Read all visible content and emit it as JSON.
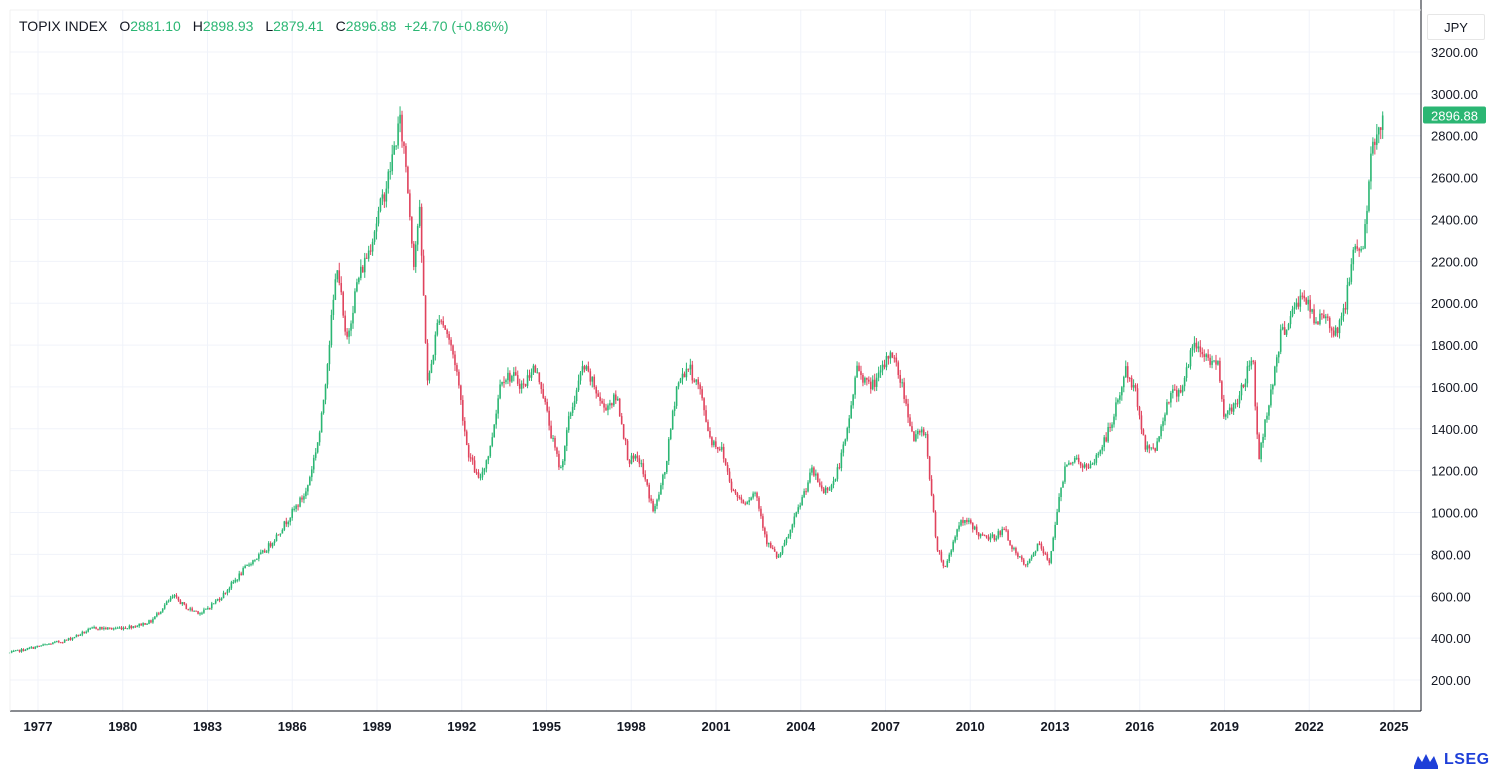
{
  "legend": {
    "symbol": "TOPIX INDEX",
    "o_label": "O",
    "o_value": "2881.10",
    "h_label": "H",
    "h_value": "2898.93",
    "l_label": "L",
    "l_value": "2879.41",
    "c_label": "C",
    "c_value": "2896.88",
    "change": "+24.70 (+0.86%)"
  },
  "currency": "JPY",
  "brand": "LSEG",
  "colors": {
    "up": "#2bb673",
    "down": "#e0435d",
    "accent": "#2bb673",
    "grid": "#f0f3fa",
    "brand": "#1e3fd8"
  },
  "chart_data": {
    "type": "candlestick",
    "symbol": "TOPIX INDEX",
    "currency": "JPY",
    "y_ticks": [
      "200.00",
      "400.00",
      "600.00",
      "800.00",
      "1000.00",
      "1200.00",
      "1400.00",
      "1600.00",
      "1800.00",
      "2000.00",
      "2200.00",
      "2400.00",
      "2600.00",
      "2800.00",
      "3000.00",
      "3200.00"
    ],
    "x_ticks": [
      "1977",
      "1980",
      "1983",
      "1986",
      "1989",
      "1992",
      "1995",
      "1998",
      "2001",
      "2004",
      "2007",
      "2010",
      "2013",
      "2016",
      "2019",
      "2022",
      "2025"
    ],
    "ylim": [
      0,
      3200
    ],
    "xlim": [
      1976.0,
      2025.5
    ],
    "last_value_label": "2896.88",
    "last_value": 2896.88,
    "grid": true,
    "approx_path": [
      [
        1976.0,
        330
      ],
      [
        1976.5,
        345
      ],
      [
        1977.0,
        360
      ],
      [
        1977.5,
        375
      ],
      [
        1978.0,
        390
      ],
      [
        1978.5,
        420
      ],
      [
        1979.0,
        450
      ],
      [
        1979.5,
        445
      ],
      [
        1980.0,
        450
      ],
      [
        1980.5,
        460
      ],
      [
        1981.0,
        480
      ],
      [
        1981.5,
        560
      ],
      [
        1981.8,
        600
      ],
      [
        1982.3,
        540
      ],
      [
        1982.8,
        520
      ],
      [
        1983.5,
        600
      ],
      [
        1984.0,
        680
      ],
      [
        1984.5,
        760
      ],
      [
        1985.0,
        810
      ],
      [
        1985.5,
        900
      ],
      [
        1986.0,
        1000
      ],
      [
        1986.5,
        1100
      ],
      [
        1987.0,
        1400
      ],
      [
        1987.3,
        1800
      ],
      [
        1987.6,
        2200
      ],
      [
        1987.9,
        1800
      ],
      [
        1988.3,
        2100
      ],
      [
        1988.7,
        2250
      ],
      [
        1989.0,
        2400
      ],
      [
        1989.4,
        2600
      ],
      [
        1989.8,
        2870
      ],
      [
        1990.0,
        2700
      ],
      [
        1990.3,
        2200
      ],
      [
        1990.5,
        2450
      ],
      [
        1990.8,
        1600
      ],
      [
        1991.2,
        1950
      ],
      [
        1991.5,
        1850
      ],
      [
        1991.8,
        1700
      ],
      [
        1992.2,
        1300
      ],
      [
        1992.6,
        1150
      ],
      [
        1993.0,
        1300
      ],
      [
        1993.4,
        1650
      ],
      [
        1993.8,
        1650
      ],
      [
        1994.2,
        1600
      ],
      [
        1994.5,
        1700
      ],
      [
        1994.8,
        1620
      ],
      [
        1995.2,
        1350
      ],
      [
        1995.5,
        1200
      ],
      [
        1995.8,
        1450
      ],
      [
        1996.3,
        1700
      ],
      [
        1996.7,
        1600
      ],
      [
        1997.0,
        1500
      ],
      [
        1997.5,
        1550
      ],
      [
        1997.9,
        1250
      ],
      [
        1998.3,
        1250
      ],
      [
        1998.8,
        1000
      ],
      [
        1999.2,
        1200
      ],
      [
        1999.6,
        1600
      ],
      [
        2000.0,
        1700
      ],
      [
        2000.4,
        1600
      ],
      [
        2000.8,
        1350
      ],
      [
        2001.2,
        1300
      ],
      [
        2001.6,
        1100
      ],
      [
        2002.0,
        1050
      ],
      [
        2002.4,
        1100
      ],
      [
        2002.8,
        860
      ],
      [
        2003.2,
        780
      ],
      [
        2003.6,
        900
      ],
      [
        2004.0,
        1050
      ],
      [
        2004.4,
        1200
      ],
      [
        2004.8,
        1100
      ],
      [
        2005.2,
        1150
      ],
      [
        2005.6,
        1350
      ],
      [
        2006.0,
        1700
      ],
      [
        2006.4,
        1600
      ],
      [
        2006.8,
        1650
      ],
      [
        2007.2,
        1780
      ],
      [
        2007.6,
        1600
      ],
      [
        2008.0,
        1350
      ],
      [
        2008.4,
        1400
      ],
      [
        2008.8,
        850
      ],
      [
        2009.1,
        730
      ],
      [
        2009.6,
        950
      ],
      [
        2010.0,
        950
      ],
      [
        2010.4,
        880
      ],
      [
        2010.8,
        880
      ],
      [
        2011.2,
        920
      ],
      [
        2011.6,
        800
      ],
      [
        2012.0,
        740
      ],
      [
        2012.4,
        850
      ],
      [
        2012.8,
        760
      ],
      [
        2013.0,
        950
      ],
      [
        2013.4,
        1250
      ],
      [
        2013.8,
        1250
      ],
      [
        2014.2,
        1200
      ],
      [
        2014.6,
        1300
      ],
      [
        2015.0,
        1420
      ],
      [
        2015.5,
        1680
      ],
      [
        2015.9,
        1550
      ],
      [
        2016.2,
        1300
      ],
      [
        2016.6,
        1320
      ],
      [
        2017.0,
        1550
      ],
      [
        2017.5,
        1600
      ],
      [
        2017.9,
        1800
      ],
      [
        2018.3,
        1750
      ],
      [
        2018.8,
        1700
      ],
      [
        2019.0,
        1450
      ],
      [
        2019.5,
        1550
      ],
      [
        2020.0,
        1750
      ],
      [
        2020.2,
        1250
      ],
      [
        2020.6,
        1550
      ],
      [
        2021.0,
        1850
      ],
      [
        2021.4,
        1950
      ],
      [
        2021.8,
        2050
      ],
      [
        2022.2,
        1900
      ],
      [
        2022.6,
        1950
      ],
      [
        2022.9,
        1850
      ],
      [
        2023.3,
        2000
      ],
      [
        2023.6,
        2300
      ],
      [
        2023.9,
        2250
      ],
      [
        2024.2,
        2700
      ],
      [
        2024.4,
        2800
      ],
      [
        2024.6,
        2896.88
      ]
    ]
  }
}
